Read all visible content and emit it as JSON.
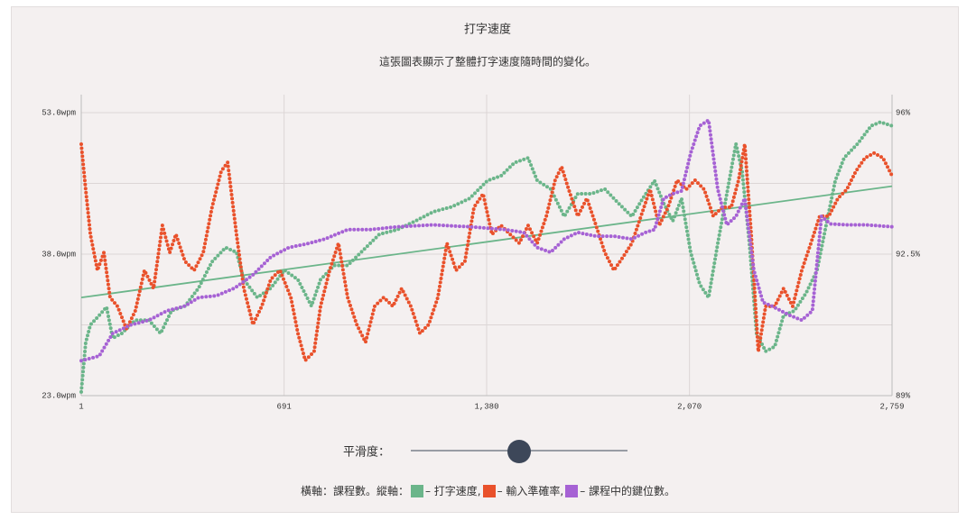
{
  "chart_data": {
    "type": "scatter",
    "title": "打字速度",
    "subtitle": "這張圖表顯示了整體打字速度隨時間的變化。",
    "xlim": [
      1,
      2759
    ],
    "xticks": [
      1,
      691,
      {
        "value": 1380,
        "label": "1,380"
      },
      {
        "value": 2070,
        "label": "2,070"
      },
      {
        "value": 2759,
        "label": "2,759"
      }
    ],
    "ylim": [
      23,
      53
    ],
    "yticks": [
      {
        "value": 23,
        "label": "23.0wpm"
      },
      {
        "value": 38,
        "label": "38.0wpm"
      },
      {
        "value": 53,
        "label": "53.0wpm"
      }
    ],
    "ygrid": [
      23,
      30.5,
      38,
      45.5,
      53
    ],
    "y2lim": [
      89,
      96
    ],
    "y2ticks": [
      {
        "value": 89,
        "label": "89%"
      },
      {
        "value": 92.5,
        "label": "92.5%"
      },
      {
        "value": 96,
        "label": "96%"
      }
    ],
    "grid": true,
    "series": [
      {
        "name": "– 打字速度,",
        "color": "#6bb58a",
        "x": [
          1,
          16,
          32,
          62,
          87,
          108,
          139,
          185,
          231,
          271,
          308,
          354,
          400,
          446,
          492,
          529,
          554,
          600,
          646,
          692,
          738,
          784,
          815,
          861,
          907,
          953,
          1015,
          1076,
          1137,
          1199,
          1260,
          1322,
          1383,
          1429,
          1475,
          1521,
          1552,
          1598,
          1644,
          1690,
          1736,
          1782,
          1828,
          1874,
          1911,
          1951,
          1982,
          2013,
          2043,
          2074,
          2105,
          2135,
          2166,
          2197,
          2228,
          2249,
          2274,
          2298,
          2329,
          2360,
          2390,
          2427,
          2467,
          2504,
          2535,
          2566,
          2596,
          2642,
          2688,
          2719,
          2759
        ],
        "values": [
          23.4,
          28.6,
          30.5,
          31.5,
          32.4,
          29.1,
          29.6,
          31.0,
          31.0,
          29.6,
          32.0,
          32.5,
          34.4,
          37.2,
          38.7,
          38.2,
          35.3,
          33.4,
          34.4,
          36.3,
          35.3,
          32.5,
          35.3,
          36.8,
          36.8,
          38.2,
          40.1,
          40.6,
          41.5,
          42.5,
          43.0,
          43.9,
          45.8,
          46.3,
          47.7,
          48.2,
          45.8,
          44.9,
          42.0,
          44.4,
          44.4,
          44.9,
          43.4,
          42.0,
          43.9,
          45.8,
          43.4,
          41.5,
          43.9,
          38.2,
          34.8,
          33.4,
          39.1,
          44.4,
          49.7,
          46.8,
          39.1,
          29.6,
          27.7,
          28.2,
          31.5,
          32.0,
          33.9,
          36.3,
          41.1,
          45.8,
          48.2,
          49.7,
          51.6,
          52.0,
          51.6
        ]
      },
      {
        "name": "– 輸入準確率,",
        "color": "#e9512b",
        "axis": "y2",
        "x": [
          1,
          16,
          32,
          56,
          78,
          99,
          124,
          155,
          185,
          216,
          247,
          277,
          302,
          323,
          354,
          385,
          416,
          446,
          477,
          499,
          529,
          554,
          585,
          615,
          646,
          677,
          714,
          738,
          763,
          793,
          815,
          846,
          876,
          907,
          938,
          968,
          999,
          1030,
          1061,
          1091,
          1122,
          1153,
          1183,
          1214,
          1245,
          1276,
          1306,
          1337,
          1368,
          1398,
          1429,
          1460,
          1491,
          1521,
          1552,
          1583,
          1613,
          1635,
          1659,
          1690,
          1721,
          1752,
          1782,
          1813,
          1844,
          1874,
          1905,
          1936,
          1967,
          1997,
          2028,
          2059,
          2089,
          2120,
          2151,
          2182,
          2212,
          2237,
          2258,
          2280,
          2304,
          2329,
          2360,
          2390,
          2421,
          2452,
          2483,
          2513,
          2544,
          2575,
          2605,
          2636,
          2667,
          2698,
          2728,
          2759
        ],
        "values": [
          95.22,
          94.1,
          92.99,
          92.1,
          92.54,
          91.43,
          91.21,
          90.65,
          91.1,
          92.1,
          91.65,
          93.21,
          92.54,
          92.99,
          92.32,
          92.1,
          92.54,
          93.66,
          94.55,
          94.77,
          92.99,
          91.65,
          90.76,
          91.21,
          91.88,
          92.1,
          91.43,
          90.54,
          89.87,
          90.09,
          91.21,
          92.1,
          92.77,
          91.43,
          90.76,
          90.32,
          91.21,
          91.43,
          91.21,
          91.65,
          91.21,
          90.54,
          90.76,
          91.43,
          92.77,
          92.1,
          92.32,
          93.66,
          93.99,
          92.99,
          93.21,
          92.99,
          92.77,
          93.21,
          92.77,
          93.44,
          94.33,
          94.66,
          94.1,
          93.44,
          93.88,
          93.21,
          92.54,
          92.1,
          92.43,
          92.77,
          93.44,
          94.1,
          93.21,
          93.66,
          94.33,
          94.1,
          94.33,
          94.1,
          93.44,
          93.66,
          93.66,
          94.33,
          95.22,
          92.99,
          90.09,
          91.21,
          91.21,
          91.65,
          91.21,
          92.1,
          92.77,
          93.44,
          93.44,
          93.88,
          94.1,
          94.55,
          94.88,
          95.0,
          94.88,
          94.44
        ]
      },
      {
        "name": "– 課程中的鍵位數。",
        "color": "#a662d4",
        "x": [
          1,
          62,
          108,
          170,
          231,
          293,
          354,
          400,
          462,
          523,
          585,
          646,
          707,
          769,
          830,
          907,
          984,
          1076,
          1199,
          1322,
          1444,
          1506,
          1552,
          1598,
          1644,
          1690,
          1752,
          1813,
          1874,
          1920,
          1951,
          1982,
          2013,
          2043,
          2074,
          2105,
          2135,
          2166,
          2197,
          2228,
          2258,
          2289,
          2320,
          2350,
          2381,
          2412,
          2452,
          2488,
          2519,
          2550,
          2611,
          2673,
          2759
        ],
        "values": [
          26.7,
          27.2,
          29.6,
          30.5,
          31.0,
          32.0,
          32.5,
          33.4,
          33.6,
          34.4,
          35.8,
          37.7,
          38.7,
          39.1,
          39.6,
          40.6,
          40.6,
          40.9,
          41.1,
          40.9,
          40.6,
          40.3,
          38.7,
          38.2,
          39.6,
          40.3,
          39.9,
          39.9,
          39.6,
          40.3,
          40.6,
          43.9,
          44.4,
          44.7,
          48.7,
          51.6,
          52.2,
          44.9,
          41.1,
          42.0,
          43.9,
          36.3,
          32.9,
          32.5,
          32.0,
          31.5,
          31.0,
          32.0,
          42.0,
          41.2,
          41.1,
          41.1,
          40.9
        ]
      }
    ],
    "trend": {
      "color": "#6bb58a",
      "x": [
        1,
        2759
      ],
      "values": [
        33.4,
        45.2
      ]
    },
    "slider_label": "平滑度：",
    "legend_prefix": "橫軸：課程數。縱軸："
  }
}
